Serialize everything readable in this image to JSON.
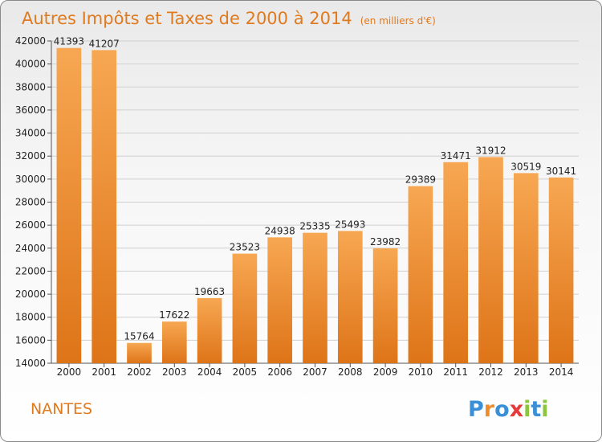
{
  "chart_data": {
    "type": "bar",
    "title": "Autres Impôts et Taxes de 2000 à 2014",
    "subtitle": "(en milliers d'€)",
    "categories": [
      "2000",
      "2001",
      "2002",
      "2003",
      "2004",
      "2005",
      "2006",
      "2007",
      "2008",
      "2009",
      "2010",
      "2011",
      "2012",
      "2013",
      "2014"
    ],
    "values": [
      41393,
      41207,
      15764,
      17622,
      19663,
      23523,
      24938,
      25335,
      25493,
      23982,
      29389,
      31471,
      31912,
      30519,
      30141
    ],
    "ylim": [
      14000,
      42000
    ],
    "yticks": [
      14000,
      16000,
      18000,
      20000,
      22000,
      24000,
      26000,
      28000,
      30000,
      32000,
      34000,
      36000,
      38000,
      40000,
      42000
    ],
    "grid": true,
    "bar_color": "#f08c2a",
    "xlabel": "",
    "ylabel": ""
  },
  "footer": {
    "city": "NANTES",
    "logo_letters": [
      "P",
      "r",
      "o",
      "x",
      "i",
      "t",
      "i"
    ],
    "logo_colors": [
      "#3a8fd6",
      "#f08c2a",
      "#3a8fd6",
      "#e53b3b",
      "#8cc63f",
      "#3a8fd6",
      "#8cc63f"
    ]
  }
}
